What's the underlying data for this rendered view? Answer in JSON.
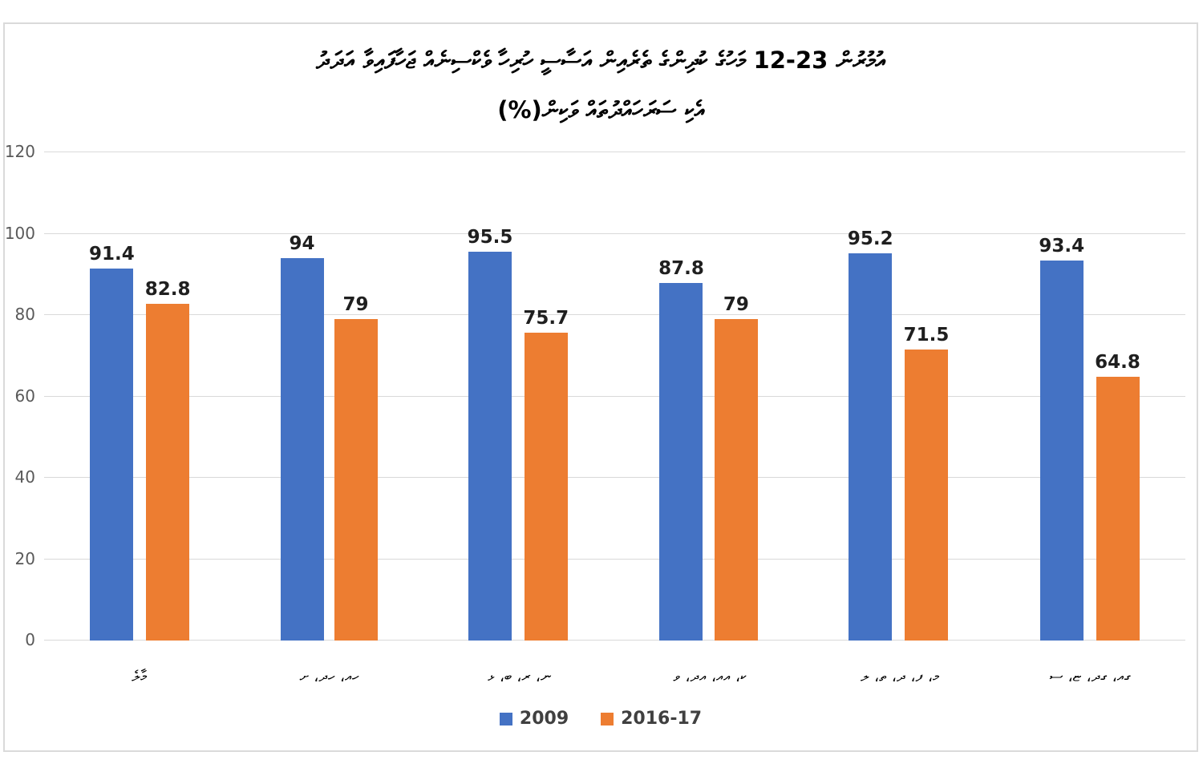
{
  "title": {
    "line1": "އުމުރުން 23-12 މަހުގެ ކުދިންގެ ތެރެއިން އަސާސީ ހުރިހާ ވެކްސިނެއް ޖަހާފައިވާ އަދަދު",
    "line2": "އެކި ސަރަހައްދުތައް ވަކިން(%)"
  },
  "chart_data": {
    "type": "bar",
    "title": "އުމުރުން 23-12 މަހުގެ ކުދިންގެ ތެރެއިން އަސާސީ ހުރިހާ ވެކްސިނެއް ޖަހާފައިވާ އަދަދު އެކި ސަރަހައްދުތައް ވަކިން(%)",
    "categories": [
      "މާލެ",
      "ހއ، ހދ، ށ",
      "ނ، ރ، ބ، ޅ",
      "ކ، އއ، އދ، ވ",
      "މ، ފ، ދ، ތ، ލ",
      "ގއ، ގދ، ޏ، ސ"
    ],
    "series": [
      {
        "name": "2009",
        "color": "#4472C4",
        "values": [
          91.4,
          94,
          95.5,
          87.8,
          95.2,
          93.4
        ]
      },
      {
        "name": "2016-17",
        "color": "#ED7D31",
        "values": [
          82.8,
          79,
          75.7,
          79,
          71.5,
          64.8
        ]
      }
    ],
    "y_ticks": [
      0,
      20,
      40,
      60,
      80,
      100,
      120
    ],
    "ylim": [
      0,
      120
    ],
    "grid": true,
    "legend_position": "bottom",
    "colors": {
      "grid": "#D9D9D9",
      "frame_border": "#DADADA",
      "y_tick_label": "#595959",
      "value_label": "#1F1F1F",
      "series_2009": "#4472C4",
      "series_2016_17": "#ED7D31"
    }
  }
}
